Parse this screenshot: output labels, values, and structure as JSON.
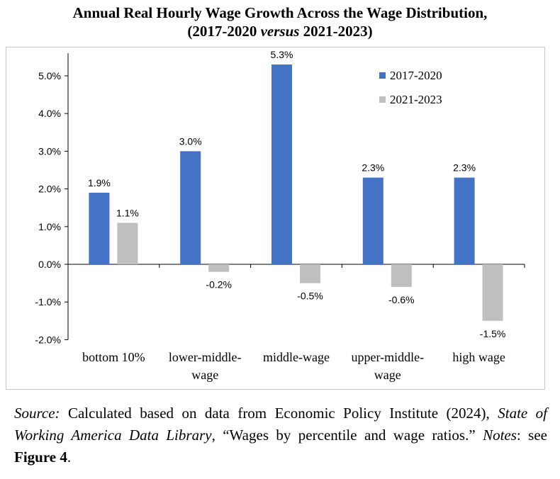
{
  "title": {
    "line1": "Annual Real Hourly Wage Growth Across the Wage Distribution,",
    "line2_pre": "(2017-2020 ",
    "line2_italic": "versus",
    "line2_post": " 2021-2023)"
  },
  "chart_data": {
    "type": "bar",
    "categories": [
      [
        "bottom 10%"
      ],
      [
        "lower-middle-",
        "wage"
      ],
      [
        "middle-wage"
      ],
      [
        "upper-middle-",
        "wage"
      ],
      [
        "high wage"
      ]
    ],
    "series": [
      {
        "name": "2017-2020",
        "color": "#4472c4",
        "values": [
          1.9,
          3.0,
          5.3,
          2.3,
          2.3
        ],
        "labels": [
          "1.9%",
          "3.0%",
          "5.3%",
          "2.3%",
          "2.3%"
        ]
      },
      {
        "name": "2021-2023",
        "color": "#bfbfbf",
        "values": [
          1.1,
          -0.2,
          -0.5,
          -0.6,
          -1.5
        ],
        "labels": [
          "1.1%",
          "-0.2%",
          "-0.5%",
          "-0.6%",
          "-1.5%"
        ]
      }
    ],
    "ylim": [
      -2.0,
      5.6
    ],
    "yticks": [
      -2.0,
      -1.0,
      0.0,
      1.0,
      2.0,
      3.0,
      4.0,
      5.0
    ],
    "ytick_labels": [
      "-2.0%",
      "-1.0%",
      "0.0%",
      "1.0%",
      "2.0%",
      "3.0%",
      "4.0%",
      "5.0%"
    ],
    "legend_position": "top-right",
    "grid": false
  },
  "source": {
    "source_label": "Source:",
    "source_text1": " Calculated based on data from Economic Policy Institute (2024), ",
    "source_italic": "State of Working America Data Library",
    "source_text2": ", “Wages by percentile and wage ratios.” ",
    "notes_label": "Notes",
    "notes_text": ": see ",
    "figure_ref": "Figure 4",
    "end": "."
  }
}
